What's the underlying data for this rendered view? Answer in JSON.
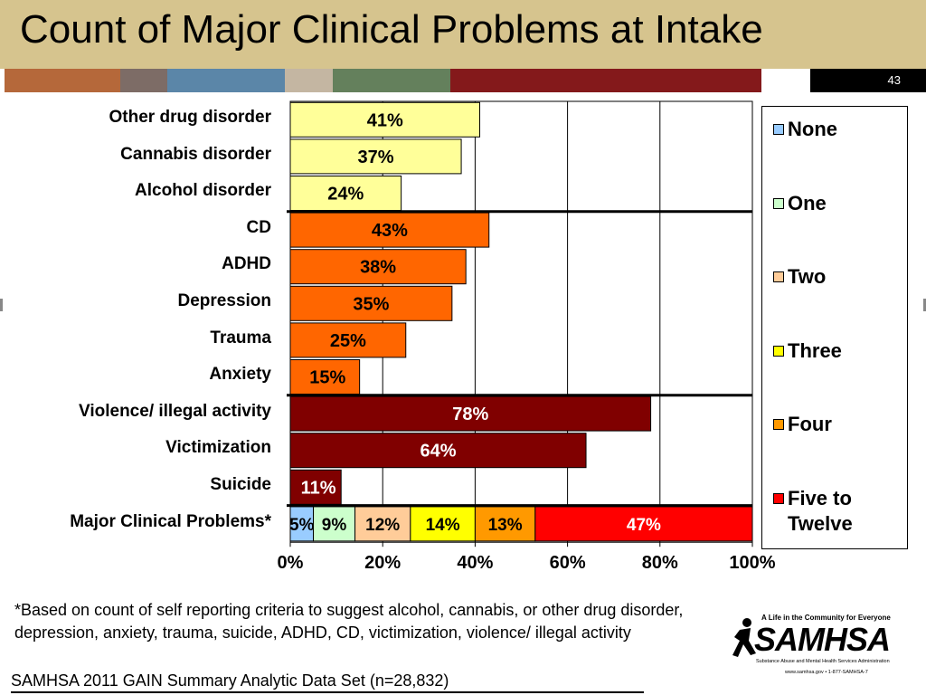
{
  "title": "Count of Major Clinical Problems at Intake",
  "slide_number": "43",
  "strip_colors": [
    "#b5683a",
    "#7d6c66",
    "#5b86a8",
    "#c4b6a2",
    "#64805c",
    "#84191b"
  ],
  "chart_data": {
    "type": "bar",
    "orientation": "horizontal",
    "categories": [
      "Other drug disorder",
      "Cannabis disorder",
      "Alcohol disorder",
      "CD",
      "ADHD",
      "Depression",
      "Trauma",
      "Anxiety",
      "Violence/ illegal activity",
      "Victimization",
      "Suicide"
    ],
    "values": [
      41,
      37,
      24,
      43,
      38,
      35,
      25,
      15,
      78,
      64,
      11
    ],
    "data_labels": [
      "41%",
      "37%",
      "24%",
      "43%",
      "38%",
      "35%",
      "25%",
      "15%",
      "78%",
      "64%",
      "11%"
    ],
    "bar_colors": [
      "#ffff99",
      "#ffff99",
      "#ffff99",
      "#ff6600",
      "#ff6600",
      "#ff6600",
      "#ff6600",
      "#ff6600",
      "#800000",
      "#800000",
      "#800000"
    ],
    "label_colors": [
      "#000000",
      "#000000",
      "#000000",
      "#000000",
      "#000000",
      "#000000",
      "#000000",
      "#000000",
      "#ffffff",
      "#ffffff",
      "#ffffff"
    ],
    "stacked": {
      "category": "Major Clinical Problems*",
      "segments": [
        {
          "name": "None",
          "value": 5,
          "label": "5%",
          "color": "#99ccff"
        },
        {
          "name": "One",
          "value": 9,
          "label": "9%",
          "color": "#ccffcc"
        },
        {
          "name": "Two",
          "value": 12,
          "label": "12%",
          "color": "#ffcc99"
        },
        {
          "name": "Three",
          "value": 14,
          "label": "14%",
          "color": "#ffff00"
        },
        {
          "name": "Four",
          "value": 13,
          "label": "13%",
          "color": "#ff9900"
        },
        {
          "name": "Five to Twelve",
          "value": 47,
          "label": "47%",
          "color": "#ff0000"
        }
      ]
    },
    "group_separators_after": [
      "Alcohol disorder",
      "Anxiety",
      "Suicide"
    ],
    "x_ticks": [
      "0%",
      "20%",
      "40%",
      "60%",
      "80%",
      "100%"
    ],
    "xlim": [
      0,
      100
    ],
    "grid": true,
    "legend_position": "right",
    "legend": {
      "entries": [
        {
          "label": "None",
          "color": "#99ccff"
        },
        {
          "label": "One",
          "color": "#ccffcc"
        },
        {
          "label": "Two",
          "color": "#ffcc99"
        },
        {
          "label": "Three",
          "color": "#ffff00"
        },
        {
          "label": "Four",
          "color": "#ff9900"
        },
        {
          "label": "Five to Twelve",
          "color": "#ff0000"
        }
      ]
    }
  },
  "footnote": "*Based on count of self reporting criteria to suggest alcohol, cannabis, or other drug disorder, depression, anxiety, trauma, suicide, ADHD, CD, victimization, violence/ illegal activity",
  "source": "SAMHSA 2011 GAIN Summary Analytic Data Set (n=28,832)",
  "logo": {
    "tagline": "A Life in the Community for Everyone",
    "wordmark": "SAMHSA",
    "subtitle": "Substance Abuse and Mental Health Services Administration",
    "url": "www.samhsa.gov • 1-877-SAMHSA-7"
  }
}
